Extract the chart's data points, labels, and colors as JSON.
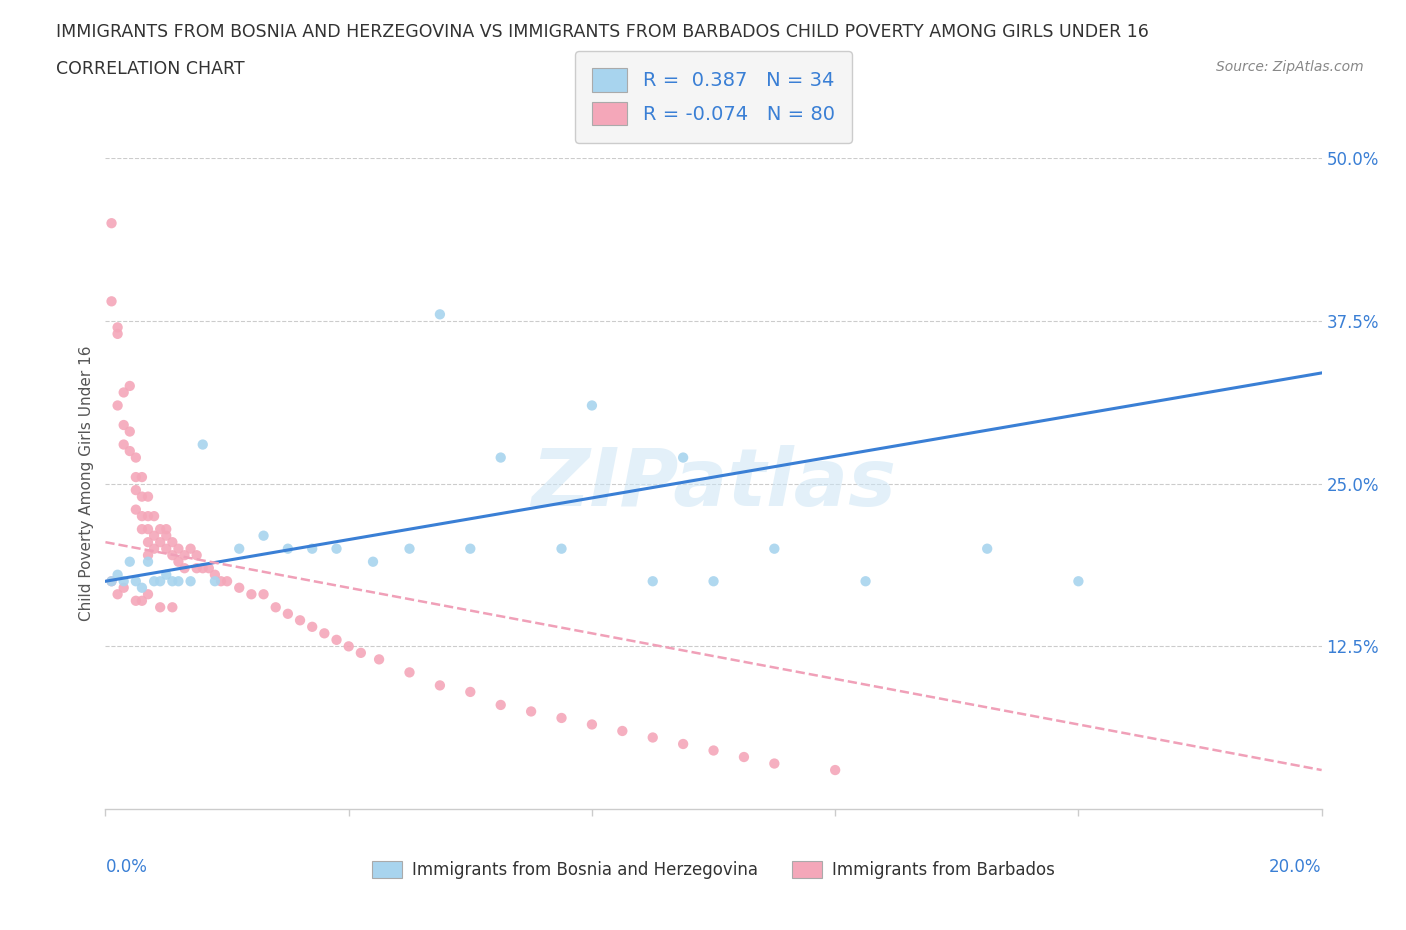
{
  "title_line1": "IMMIGRANTS FROM BOSNIA AND HERZEGOVINA VS IMMIGRANTS FROM BARBADOS CHILD POVERTY AMONG GIRLS UNDER 16",
  "title_line2": "CORRELATION CHART",
  "source": "Source: ZipAtlas.com",
  "ylabel": "Child Poverty Among Girls Under 16",
  "xlim": [
    0.0,
    0.2
  ],
  "ylim": [
    0.0,
    0.5
  ],
  "yticks": [
    0.0,
    0.125,
    0.25,
    0.375,
    0.5
  ],
  "right_ytick_labels": [
    "12.5%",
    "25.0%",
    "37.5%",
    "50.0%"
  ],
  "bosnia_dot_color": "#a8d4ee",
  "barbados_dot_color": "#f4a7b9",
  "bosnia_line_color": "#3a7fd5",
  "barbados_line_color": "#f0a0b8",
  "text_blue": "#3a7fd5",
  "text_dark": "#333333",
  "text_gray": "#aaaaaa",
  "legend_bosnia_text": "R =  0.387   N = 34",
  "legend_barbados_text": "R = -0.074   N = 80",
  "label_bosnia": "Immigrants from Bosnia and Herzegovina",
  "label_barbados": "Immigrants from Barbados",
  "watermark": "ZIPatlas",
  "background_color": "#ffffff",
  "bosnia_line_x0": 0.0,
  "bosnia_line_y0": 0.175,
  "bosnia_line_x1": 0.2,
  "bosnia_line_y1": 0.335,
  "barbados_line_x0": 0.0,
  "barbados_line_y0": 0.205,
  "barbados_line_x1": 0.2,
  "barbados_line_y1": 0.03,
  "bosnia_x": [
    0.001,
    0.002,
    0.003,
    0.004,
    0.005,
    0.006,
    0.007,
    0.008,
    0.009,
    0.01,
    0.011,
    0.012,
    0.014,
    0.016,
    0.018,
    0.022,
    0.026,
    0.03,
    0.034,
    0.038,
    0.044,
    0.05,
    0.06,
    0.065,
    0.075,
    0.09,
    0.1,
    0.11,
    0.125,
    0.145,
    0.16,
    0.055,
    0.08,
    0.095
  ],
  "bosnia_y": [
    0.175,
    0.18,
    0.175,
    0.19,
    0.175,
    0.17,
    0.19,
    0.175,
    0.175,
    0.18,
    0.175,
    0.175,
    0.175,
    0.28,
    0.175,
    0.2,
    0.21,
    0.2,
    0.2,
    0.2,
    0.19,
    0.2,
    0.2,
    0.27,
    0.2,
    0.175,
    0.175,
    0.2,
    0.175,
    0.2,
    0.175,
    0.38,
    0.31,
    0.27
  ],
  "barbados_x": [
    0.001,
    0.001,
    0.002,
    0.002,
    0.002,
    0.003,
    0.003,
    0.003,
    0.004,
    0.004,
    0.004,
    0.005,
    0.005,
    0.005,
    0.005,
    0.006,
    0.006,
    0.006,
    0.006,
    0.007,
    0.007,
    0.007,
    0.007,
    0.007,
    0.008,
    0.008,
    0.008,
    0.009,
    0.009,
    0.01,
    0.01,
    0.01,
    0.011,
    0.011,
    0.012,
    0.012,
    0.013,
    0.013,
    0.014,
    0.015,
    0.015,
    0.016,
    0.017,
    0.018,
    0.019,
    0.02,
    0.022,
    0.024,
    0.026,
    0.028,
    0.03,
    0.032,
    0.034,
    0.036,
    0.038,
    0.04,
    0.042,
    0.045,
    0.05,
    0.055,
    0.06,
    0.065,
    0.07,
    0.075,
    0.08,
    0.085,
    0.09,
    0.095,
    0.1,
    0.105,
    0.11,
    0.12,
    0.001,
    0.002,
    0.003,
    0.005,
    0.006,
    0.007,
    0.009,
    0.011
  ],
  "barbados_y": [
    0.45,
    0.39,
    0.365,
    0.37,
    0.31,
    0.32,
    0.295,
    0.28,
    0.325,
    0.29,
    0.275,
    0.27,
    0.255,
    0.245,
    0.23,
    0.255,
    0.24,
    0.225,
    0.215,
    0.24,
    0.225,
    0.215,
    0.205,
    0.195,
    0.225,
    0.21,
    0.2,
    0.215,
    0.205,
    0.21,
    0.2,
    0.215,
    0.205,
    0.195,
    0.2,
    0.19,
    0.195,
    0.185,
    0.2,
    0.195,
    0.185,
    0.185,
    0.185,
    0.18,
    0.175,
    0.175,
    0.17,
    0.165,
    0.165,
    0.155,
    0.15,
    0.145,
    0.14,
    0.135,
    0.13,
    0.125,
    0.12,
    0.115,
    0.105,
    0.095,
    0.09,
    0.08,
    0.075,
    0.07,
    0.065,
    0.06,
    0.055,
    0.05,
    0.045,
    0.04,
    0.035,
    0.03,
    0.175,
    0.165,
    0.17,
    0.16,
    0.16,
    0.165,
    0.155,
    0.155
  ]
}
